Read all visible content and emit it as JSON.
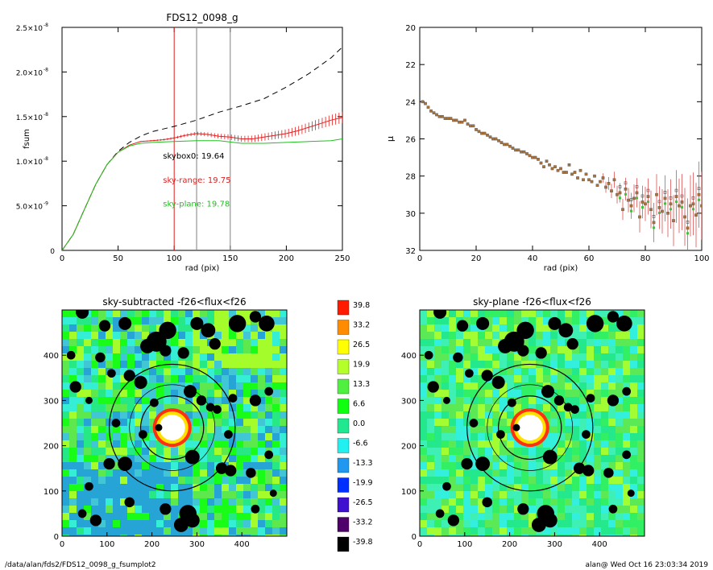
{
  "footer": {
    "path": "/data/alan/fds2/FDS12_0098_g_fsumplot2",
    "stamp": "alan@  Wed Oct 16 23:03:34 2019"
  },
  "chart_data": [
    {
      "type": "line",
      "title": "FDS12_0098_g",
      "xlabel": "rad (pix)",
      "ylabel": "fsum",
      "xlim": [
        0,
        250
      ],
      "ylim": [
        0,
        2.5e-08
      ],
      "xticks": [
        0,
        50,
        100,
        150,
        200,
        250
      ],
      "yticks": [
        {
          "value": 0,
          "label": "0"
        },
        {
          "value": 5e-09,
          "label": "5.0×10",
          "exp": "-9"
        },
        {
          "value": 1e-08,
          "label": "1.0×10",
          "exp": "-8"
        },
        {
          "value": 1.5e-08,
          "label": "1.5×10",
          "exp": "-8"
        },
        {
          "value": 2e-08,
          "label": "2.0×10",
          "exp": "-8"
        },
        {
          "value": 2.5e-08,
          "label": "2.5×10",
          "exp": "-8"
        }
      ],
      "vlines": [
        {
          "x": 100,
          "color": "#e02020"
        },
        {
          "x": 120,
          "color": "#808080"
        },
        {
          "x": 150,
          "color": "#808080"
        }
      ],
      "annotations": [
        {
          "text": "skybox0: 19.64",
          "color": "#000000",
          "x": 90,
          "y": 1.03e-08
        },
        {
          "text": "sky-range: 19.75",
          "color": "#e02020",
          "x": 90,
          "y": 7.6e-09
        },
        {
          "text": "sky-plane: 19.78",
          "color": "#20c020",
          "x": 90,
          "y": 4.9e-09
        }
      ],
      "series": [
        {
          "style": "dashed",
          "color": "#000000",
          "x": [
            0,
            10,
            20,
            30,
            40,
            50,
            60,
            70,
            80,
            100,
            120,
            140,
            160,
            180,
            200,
            220,
            240,
            250
          ],
          "y": [
            0,
            1.8e-09,
            4.6e-09,
            7.4e-09,
            9.6e-09,
            1.11e-08,
            1.21e-08,
            1.28e-08,
            1.33e-08,
            1.39e-08,
            1.46e-08,
            1.55e-08,
            1.62e-08,
            1.7e-08,
            1.83e-08,
            1.98e-08,
            2.16e-08,
            2.28e-08
          ]
        },
        {
          "style": "solid-errorbars",
          "color": "#e02020",
          "x": [
            0,
            10,
            20,
            30,
            40,
            50,
            60,
            70,
            80,
            90,
            100,
            110,
            120,
            130,
            140,
            150,
            160,
            170,
            180,
            190,
            200,
            210,
            220,
            230,
            240,
            250
          ],
          "y": [
            0,
            1.8e-09,
            4.6e-09,
            7.4e-09,
            9.6e-09,
            1.1e-08,
            1.18e-08,
            1.22e-08,
            1.23e-08,
            1.24e-08,
            1.26e-08,
            1.29e-08,
            1.31e-08,
            1.3e-08,
            1.28e-08,
            1.27e-08,
            1.25e-08,
            1.25e-08,
            1.27e-08,
            1.29e-08,
            1.31e-08,
            1.34e-08,
            1.38e-08,
            1.42e-08,
            1.46e-08,
            1.49e-08
          ]
        },
        {
          "style": "solid",
          "color": "#20c020",
          "x": [
            0,
            10,
            20,
            30,
            40,
            50,
            60,
            70,
            80,
            100,
            120,
            140,
            160,
            180,
            200,
            220,
            240,
            250
          ],
          "y": [
            0,
            1.8e-09,
            4.6e-09,
            7.4e-09,
            9.6e-09,
            1.1e-08,
            1.17e-08,
            1.2e-08,
            1.21e-08,
            1.22e-08,
            1.23e-08,
            1.23e-08,
            1.2e-08,
            1.2e-08,
            1.21e-08,
            1.22e-08,
            1.23e-08,
            1.25e-08
          ]
        }
      ]
    },
    {
      "type": "scatter",
      "title": "",
      "xlabel": "rad (pix)",
      "ylabel": "μ",
      "xlim": [
        0,
        100
      ],
      "ylim": [
        32,
        20
      ],
      "xticks": [
        0,
        20,
        40,
        60,
        80,
        100
      ],
      "yticks": [
        20,
        22,
        24,
        26,
        28,
        30,
        32
      ],
      "points_x": [
        1,
        2,
        3,
        4,
        5,
        6,
        7,
        8,
        9,
        10,
        11,
        12,
        13,
        14,
        15,
        16,
        17,
        18,
        19,
        20,
        21,
        22,
        23,
        24,
        25,
        26,
        27,
        28,
        29,
        30,
        31,
        32,
        33,
        34,
        35,
        36,
        37,
        38,
        39,
        40,
        41,
        42,
        43,
        44,
        45,
        46,
        47,
        48,
        49,
        50,
        51,
        52,
        53,
        54,
        55,
        56,
        57,
        58,
        59,
        60,
        61,
        62,
        63,
        64,
        65,
        66,
        67,
        68,
        69,
        70,
        71,
        72,
        73,
        74,
        75,
        76,
        77,
        78,
        79,
        80,
        81,
        82,
        83,
        84,
        85,
        86,
        87,
        88,
        89,
        90,
        91,
        92,
        93,
        94,
        95,
        96,
        97,
        98,
        99,
        100
      ],
      "points_y": [
        24.0,
        24.1,
        24.3,
        24.5,
        24.6,
        24.7,
        24.8,
        24.8,
        24.9,
        24.9,
        24.9,
        25.0,
        25.0,
        25.1,
        25.1,
        25.0,
        25.2,
        25.3,
        25.3,
        25.5,
        25.6,
        25.7,
        25.7,
        25.8,
        25.9,
        26.0,
        26.0,
        26.1,
        26.2,
        26.3,
        26.3,
        26.4,
        26.5,
        26.6,
        26.6,
        26.7,
        26.7,
        26.8,
        26.9,
        27.0,
        27.0,
        27.1,
        27.3,
        27.5,
        27.2,
        27.4,
        27.6,
        27.5,
        27.7,
        27.6,
        27.8,
        27.8,
        27.4,
        27.9,
        27.8,
        28.1,
        27.7,
        28.2,
        27.9,
        28.2,
        28.3,
        28.0,
        28.5,
        28.3,
        28.1,
        28.6,
        28.4,
        28.8,
        28.2,
        29.0,
        28.9,
        29.8,
        28.7,
        29.3,
        29.6,
        29.2,
        28.9,
        30.2,
        29.4,
        29.5,
        29.1,
        29.8,
        30.5,
        29.0,
        29.7,
        29.9,
        29.2,
        30.0,
        29.5,
        30.4,
        29.1,
        29.6,
        29.4,
        30.2,
        30.8,
        29.6,
        29.5,
        30.1,
        29.0,
        29.6
      ],
      "errbar_from_x": 65
    },
    {
      "type": "heatmap",
      "title": "sky-subtracted -f26<flux<f26",
      "xlim": [
        0,
        500
      ],
      "ylim": [
        0,
        500
      ],
      "xticks": [
        0,
        100,
        200,
        300,
        400
      ],
      "yticks": [
        0,
        100,
        200,
        300,
        400
      ],
      "center": [
        245,
        240
      ],
      "circles_r": [
        70,
        95,
        140
      ]
    },
    {
      "type": "heatmap",
      "title": "sky-plane -f26<flux<f26",
      "xlim": [
        0,
        500
      ],
      "ylim": [
        0,
        500
      ],
      "xticks": [
        0,
        100,
        200,
        300,
        400
      ],
      "yticks": [
        0,
        100,
        200,
        300,
        400
      ],
      "center": [
        245,
        240
      ],
      "circles_r": [
        70,
        95,
        140
      ]
    },
    {
      "type": "colorbar",
      "labels": [
        "39.8",
        "33.2",
        "26.5",
        "19.9",
        "13.3",
        "6.6",
        "0.0",
        "-6.6",
        "-13.3",
        "-19.9",
        "-26.5",
        "-33.2",
        "-39.8"
      ],
      "colors": [
        "#ff1a00",
        "#ff8c00",
        "#ffff00",
        "#b4ff28",
        "#50f040",
        "#10ff10",
        "#20e890",
        "#20f0f0",
        "#2098f0",
        "#0030ff",
        "#4010d0",
        "#50006a",
        "#000000"
      ]
    }
  ]
}
